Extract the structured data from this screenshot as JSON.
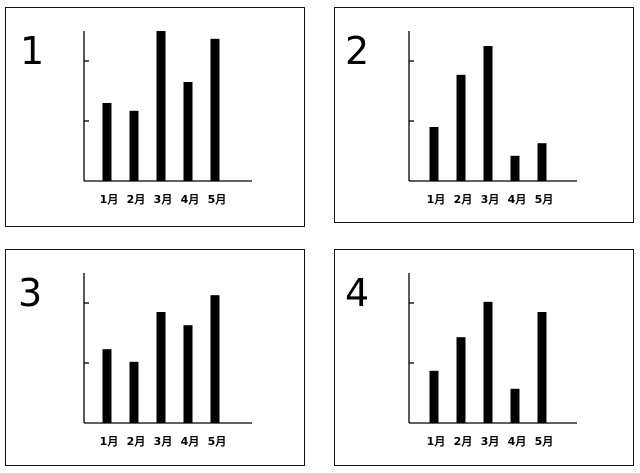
{
  "chart_data": [
    {
      "type": "bar",
      "panel_label": "1",
      "categories": [
        "1月",
        "2月",
        "3月",
        "4月",
        "5月"
      ],
      "values": [
        1.3,
        1.17,
        2.5,
        1.65,
        2.37
      ],
      "ylim": [
        0,
        2.5
      ],
      "yticks": [
        1,
        2
      ],
      "grid": false
    },
    {
      "type": "bar",
      "panel_label": "2",
      "categories": [
        "1月",
        "2月",
        "3月",
        "4月",
        "5月"
      ],
      "values": [
        0.9,
        1.77,
        2.25,
        0.42,
        0.63
      ],
      "ylim": [
        0,
        2.5
      ],
      "yticks": [
        1,
        2
      ],
      "grid": false
    },
    {
      "type": "bar",
      "panel_label": "3",
      "categories": [
        "1月",
        "2月",
        "3月",
        "4月",
        "5月"
      ],
      "values": [
        1.23,
        1.02,
        1.85,
        1.63,
        2.13
      ],
      "ylim": [
        0,
        2.5
      ],
      "yticks": [
        1,
        2
      ],
      "grid": false
    },
    {
      "type": "bar",
      "panel_label": "4",
      "categories": [
        "1月",
        "2月",
        "3月",
        "4月",
        "5月"
      ],
      "values": [
        0.87,
        1.43,
        2.02,
        0.57,
        1.85
      ],
      "ylim": [
        0,
        2.5
      ],
      "yticks": [
        1,
        2
      ],
      "grid": false
    }
  ],
  "colors": {
    "bar": "#000000",
    "axis": "#000000",
    "frame": "#111111"
  }
}
